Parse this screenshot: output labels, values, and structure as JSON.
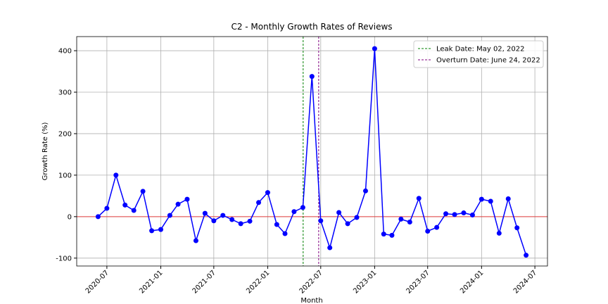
{
  "chart_data": {
    "type": "line",
    "title": "C2 - Monthly Growth Rates of Reviews",
    "xlabel": "Month",
    "ylabel": "Growth Rate (%)",
    "x": [
      "2020-06",
      "2020-07",
      "2020-08",
      "2020-09",
      "2020-10",
      "2020-11",
      "2020-12",
      "2021-01",
      "2021-02",
      "2021-03",
      "2021-04",
      "2021-05",
      "2021-06",
      "2021-07",
      "2021-08",
      "2021-09",
      "2021-10",
      "2021-11",
      "2021-12",
      "2022-01",
      "2022-02",
      "2022-03",
      "2022-04",
      "2022-05",
      "2022-06",
      "2022-07",
      "2022-08",
      "2022-09",
      "2022-10",
      "2022-11",
      "2022-12",
      "2023-01",
      "2023-02",
      "2023-03",
      "2023-04",
      "2023-05",
      "2023-06",
      "2023-07",
      "2023-08",
      "2023-09",
      "2023-10",
      "2023-11",
      "2023-12",
      "2024-01",
      "2024-02",
      "2024-03",
      "2024-04",
      "2024-05",
      "2024-06"
    ],
    "series": [
      {
        "color": "#0000ff",
        "values": [
          0,
          20,
          100,
          28,
          15,
          61,
          -34,
          -31,
          3,
          30,
          42,
          -58,
          8,
          -10,
          3,
          -7,
          -17,
          -11,
          34,
          58,
          -19,
          -41,
          12,
          22,
          338,
          -10,
          -75,
          10,
          -17,
          -2,
          62,
          405,
          -42,
          -45,
          -6,
          -13,
          44,
          -35,
          -26,
          7,
          5,
          9,
          4,
          42,
          37,
          -40,
          43,
          -27,
          -93
        ]
      }
    ],
    "hline": {
      "y": 0,
      "color": "#e03c3c"
    },
    "vlines": [
      {
        "x": "2022-05-02",
        "label": "Leak Date: May 02, 2022",
        "color": "green"
      },
      {
        "x": "2022-06-24",
        "label": "Overturn Date: June 24, 2022",
        "color": "purple"
      }
    ],
    "xlim": [
      "2020-03-20",
      "2024-08-13"
    ],
    "xticks": [
      "2020-07",
      "2021-01",
      "2021-07",
      "2022-01",
      "2022-07",
      "2023-01",
      "2023-07",
      "2024-01",
      "2024-07"
    ],
    "ylim": [
      -119,
      434
    ],
    "yticks": [
      -100,
      0,
      100,
      200,
      300,
      400
    ],
    "grid": true,
    "legend": "upper right"
  }
}
